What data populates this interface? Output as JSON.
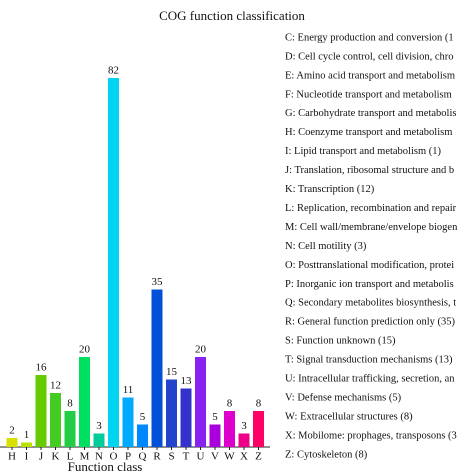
{
  "chart_data": {
    "type": "bar",
    "title": "COG function classification",
    "x_label": "Function class",
    "categories": [
      "H",
      "I",
      "J",
      "K",
      "L",
      "M",
      "N",
      "O",
      "P",
      "Q",
      "R",
      "S",
      "T",
      "U",
      "V",
      "W",
      "X",
      "Z"
    ],
    "values": [
      2,
      1,
      16,
      12,
      8,
      20,
      3,
      82,
      11,
      5,
      35,
      15,
      13,
      20,
      5,
      8,
      3,
      8
    ],
    "colors": [
      "#d8e000",
      "#b8e000",
      "#66cc00",
      "#44cc22",
      "#22cc44",
      "#00e060",
      "#00cc99",
      "#00d4f0",
      "#00aaff",
      "#0088ff",
      "#0050d8",
      "#2244cc",
      "#3333cc",
      "#8822ee",
      "#aa00dd",
      "#dd00cc",
      "#ee0088",
      "#ff0066"
    ],
    "ylim": [
      0,
      90
    ],
    "legend": [
      "C: Energy production and conversion (1",
      "D: Cell cycle control, cell division, chro",
      "E: Amino acid transport and metabolism",
      "F: Nucleotide transport and metabolism",
      "G: Carbohydrate transport and metabolis",
      "H: Coenzyme transport and metabolism",
      "I: Lipid transport and metabolism (1)",
      "J: Translation, ribosomal structure and b",
      "K: Transcription (12)",
      "L: Replication, recombination and repair",
      "M: Cell wall/membrane/envelope biogen",
      "N: Cell motility (3)",
      "O: Posttranslational modification, protei",
      "P: Inorganic ion transport and metabolis",
      "Q: Secondary metabolites biosynthesis, t",
      "R: General function prediction only (35)",
      "S: Function unknown (15)",
      "T: Signal transduction mechanisms (13)",
      "U: Intracellular trafficking, secretion, an",
      "V: Defense mechanisms (5)",
      "W: Extracellular structures (8)",
      "X: Mobilome: prophages, transposons (3",
      "Z: Cytoskeleton (8)"
    ]
  }
}
